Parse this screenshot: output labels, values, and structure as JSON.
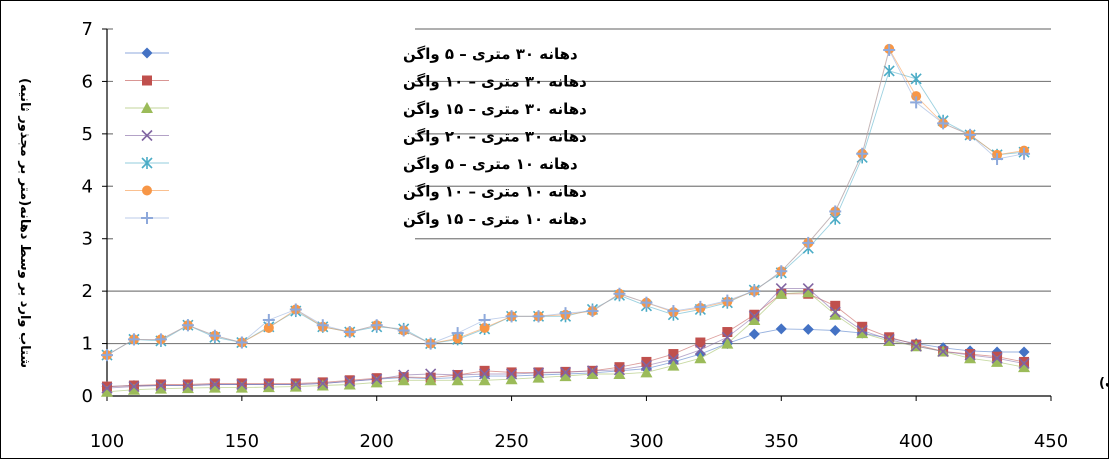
{
  "chart_data": {
    "type": "line",
    "title": "",
    "xlabel": "سرعت (کیلومتر بر ساعت)",
    "ylabel": "شتاب وارد بر وسط دهانه(متر بر مجذور ثانیه)",
    "xlim": [
      100,
      450
    ],
    "ylim": [
      0,
      7
    ],
    "xticks": [
      100,
      150,
      200,
      250,
      300,
      350,
      400,
      450
    ],
    "yticks": [
      0,
      1,
      2,
      3,
      4,
      5,
      6,
      7
    ],
    "grid": "horizontal",
    "legend_position": "top-left",
    "x": [
      100,
      110,
      120,
      130,
      140,
      150,
      160,
      170,
      180,
      190,
      200,
      210,
      220,
      230,
      240,
      250,
      260,
      270,
      280,
      290,
      300,
      310,
      320,
      330,
      340,
      350,
      360,
      370,
      380,
      390,
      400,
      410,
      420,
      430,
      440
    ],
    "series": [
      {
        "name": "دهانه ۳۰ متری – ۵ واگن",
        "color": "#4472C4",
        "marker": "diamond",
        "values": [
          0.18,
          0.2,
          0.2,
          0.2,
          0.22,
          0.22,
          0.22,
          0.22,
          0.24,
          0.28,
          0.32,
          0.35,
          0.33,
          0.35,
          0.38,
          0.38,
          0.4,
          0.42,
          0.44,
          0.48,
          0.52,
          0.65,
          0.8,
          1.0,
          1.18,
          1.28,
          1.27,
          1.25,
          1.2,
          1.1,
          1.0,
          0.92,
          0.86,
          0.84,
          0.84
        ]
      },
      {
        "name": "دهانه ۳۰ متری – ۱۰ واگن",
        "color": "#C0504D",
        "marker": "square",
        "values": [
          0.18,
          0.2,
          0.22,
          0.22,
          0.24,
          0.24,
          0.24,
          0.24,
          0.26,
          0.3,
          0.34,
          0.36,
          0.35,
          0.4,
          0.48,
          0.45,
          0.45,
          0.46,
          0.48,
          0.55,
          0.65,
          0.8,
          1.02,
          1.22,
          1.55,
          1.95,
          1.95,
          1.72,
          1.32,
          1.12,
          0.98,
          0.85,
          0.8,
          0.75,
          0.65
        ]
      },
      {
        "name": "دهانه ۳۰ متری – ۱۵ واگن",
        "color": "#9BBB59",
        "marker": "triangle",
        "values": [
          0.08,
          0.12,
          0.14,
          0.15,
          0.16,
          0.16,
          0.17,
          0.18,
          0.2,
          0.22,
          0.26,
          0.3,
          0.3,
          0.3,
          0.3,
          0.32,
          0.35,
          0.38,
          0.42,
          0.42,
          0.45,
          0.58,
          0.72,
          1.0,
          1.45,
          1.95,
          1.98,
          1.55,
          1.2,
          1.05,
          0.95,
          0.85,
          0.72,
          0.65,
          0.55
        ]
      },
      {
        "name": "دهانه ۳۰ متری – ۲۰ واگن",
        "color": "#8064A2",
        "marker": "x",
        "values": [
          0.15,
          0.18,
          0.2,
          0.2,
          0.22,
          0.22,
          0.22,
          0.22,
          0.24,
          0.28,
          0.32,
          0.4,
          0.42,
          0.4,
          0.42,
          0.42,
          0.44,
          0.45,
          0.48,
          0.5,
          0.58,
          0.7,
          0.88,
          1.12,
          1.52,
          2.05,
          2.05,
          1.6,
          1.25,
          1.08,
          0.95,
          0.85,
          0.78,
          0.72,
          0.62
        ]
      },
      {
        "name": "دهانه ۱۰ متری – ۵ واگن",
        "color": "#4BACC6",
        "marker": "star",
        "values": [
          0.78,
          1.08,
          1.05,
          1.35,
          1.12,
          1.02,
          1.32,
          1.62,
          1.32,
          1.22,
          1.32,
          1.28,
          1.0,
          1.08,
          1.28,
          1.52,
          1.52,
          1.52,
          1.65,
          1.92,
          1.72,
          1.55,
          1.65,
          1.78,
          2.02,
          2.35,
          2.82,
          3.38,
          4.55,
          6.2,
          6.05,
          5.25,
          4.98,
          4.6,
          4.65
        ]
      },
      {
        "name": "دهانه ۱۰ متری – ۱۰ واگن",
        "color": "#F79646",
        "marker": "circle",
        "values": [
          0.78,
          1.08,
          1.08,
          1.35,
          1.15,
          1.02,
          1.3,
          1.65,
          1.32,
          1.22,
          1.35,
          1.25,
          1.0,
          1.1,
          1.3,
          1.52,
          1.52,
          1.55,
          1.62,
          1.95,
          1.78,
          1.6,
          1.68,
          1.8,
          2.0,
          2.38,
          2.92,
          3.52,
          4.62,
          6.62,
          5.72,
          5.2,
          4.98,
          4.6,
          4.68
        ]
      },
      {
        "name": "دهانه ۱۰ متری – ۱۵ واگن",
        "color": "#8EA9DB",
        "marker": "plus",
        "values": [
          0.78,
          1.08,
          1.08,
          1.35,
          1.15,
          1.02,
          1.45,
          1.65,
          1.35,
          1.22,
          1.35,
          1.25,
          1.0,
          1.2,
          1.45,
          1.52,
          1.52,
          1.58,
          1.62,
          1.95,
          1.78,
          1.62,
          1.7,
          1.82,
          2.0,
          2.38,
          2.92,
          3.52,
          4.62,
          6.6,
          5.6,
          5.2,
          4.98,
          4.52,
          4.62
        ]
      }
    ]
  }
}
